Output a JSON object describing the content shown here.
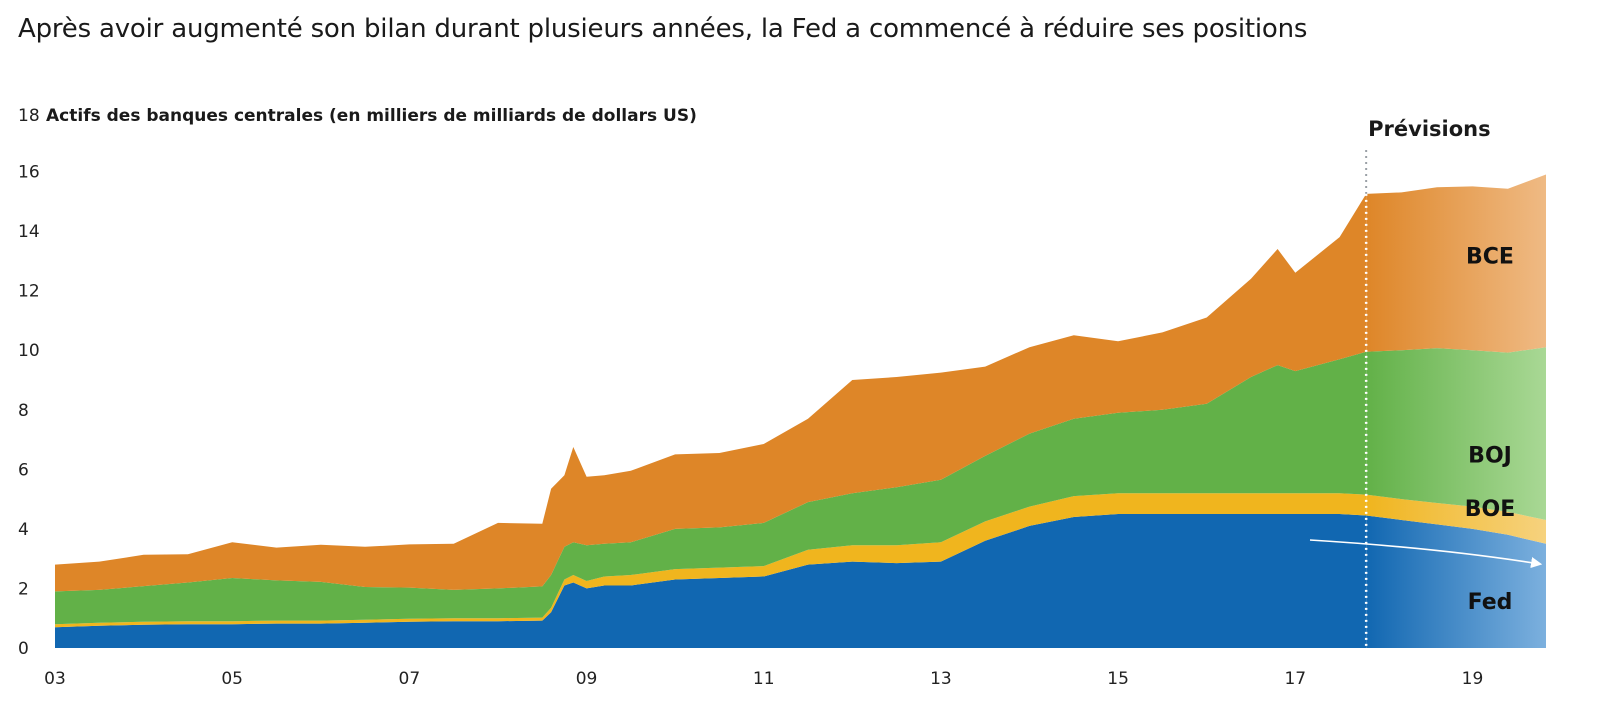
{
  "title": "Après avoir augmenté son bilan durant plusieurs années, la Fed a commencé à réduire ses positions",
  "chart_data": {
    "type": "area",
    "stacked": true,
    "title": "Après avoir augmenté son bilan durant plusieurs années, la Fed a commencé à réduire ses positions",
    "ylabel": "Actifs des banques centrales (en milliers de milliards de dollars US)",
    "ylim": [
      0,
      18
    ],
    "yticks": [
      "0",
      "2",
      "4",
      "6",
      "8",
      "10",
      "12",
      "14",
      "16",
      "18"
    ],
    "xlim": [
      2003.0,
      2019.83
    ],
    "xticks": [
      "03",
      "05",
      "07",
      "09",
      "11",
      "13",
      "15",
      "17",
      "19"
    ],
    "forecast_label": "Prévisions",
    "forecast_start": 2017.8,
    "grid": false,
    "legend": "inline labels on right",
    "x": [
      2003.0,
      2003.5,
      2004.0,
      2004.5,
      2005.0,
      2005.5,
      2006.0,
      2006.5,
      2007.0,
      2007.5,
      2008.0,
      2008.5,
      2008.6,
      2008.75,
      2008.85,
      2009.0,
      2009.2,
      2009.5,
      2010.0,
      2010.5,
      2011.0,
      2011.5,
      2012.0,
      2012.5,
      2013.0,
      2013.5,
      2014.0,
      2014.5,
      2015.0,
      2015.5,
      2016.0,
      2016.5,
      2016.8,
      2017.0,
      2017.5,
      2017.8,
      2018.2,
      2018.6,
      2019.0,
      2019.4,
      2019.83
    ],
    "series": [
      {
        "name": "Fed",
        "color": "#1167b1",
        "values": [
          0.7,
          0.75,
          0.78,
          0.8,
          0.8,
          0.82,
          0.82,
          0.85,
          0.88,
          0.9,
          0.9,
          0.92,
          1.2,
          2.1,
          2.2,
          2.0,
          2.1,
          2.1,
          2.3,
          2.35,
          2.4,
          2.8,
          2.9,
          2.85,
          2.9,
          3.6,
          4.1,
          4.4,
          4.5,
          4.5,
          4.5,
          4.5,
          4.5,
          4.5,
          4.5,
          4.45,
          4.3,
          4.15,
          4.0,
          3.8,
          3.5
        ]
      },
      {
        "name": "BOE",
        "color": "#f0b51e",
        "values": [
          0.1,
          0.1,
          0.1,
          0.1,
          0.1,
          0.1,
          0.1,
          0.1,
          0.1,
          0.1,
          0.1,
          0.1,
          0.15,
          0.2,
          0.25,
          0.25,
          0.3,
          0.35,
          0.35,
          0.35,
          0.35,
          0.5,
          0.55,
          0.6,
          0.65,
          0.65,
          0.65,
          0.7,
          0.7,
          0.7,
          0.7,
          0.7,
          0.7,
          0.7,
          0.7,
          0.7,
          0.7,
          0.72,
          0.75,
          0.77,
          0.8
        ]
      },
      {
        "name": "BOJ",
        "color": "#62b148",
        "values": [
          1.1,
          1.1,
          1.2,
          1.3,
          1.45,
          1.35,
          1.3,
          1.1,
          1.05,
          0.95,
          1.0,
          1.05,
          1.1,
          1.1,
          1.1,
          1.2,
          1.1,
          1.1,
          1.35,
          1.35,
          1.45,
          1.6,
          1.75,
          1.95,
          2.1,
          2.2,
          2.45,
          2.6,
          2.7,
          2.8,
          3.0,
          3.9,
          4.3,
          4.1,
          4.5,
          4.8,
          5.0,
          5.2,
          5.25,
          5.35,
          5.8
        ]
      },
      {
        "name": "BCE",
        "color": "#de8628",
        "values": [
          0.9,
          0.95,
          1.05,
          0.95,
          1.2,
          1.1,
          1.25,
          1.35,
          1.45,
          1.55,
          2.2,
          2.1,
          2.9,
          2.4,
          3.2,
          2.3,
          2.3,
          2.4,
          2.5,
          2.5,
          2.65,
          2.8,
          3.8,
          3.7,
          3.6,
          3.0,
          2.9,
          2.8,
          2.4,
          2.6,
          2.9,
          3.3,
          3.9,
          3.3,
          4.1,
          5.3,
          5.3,
          5.4,
          5.5,
          5.5,
          5.8
        ]
      }
    ],
    "series_labels": [
      "BCE",
      "BOJ",
      "BOE",
      "Fed"
    ]
  }
}
